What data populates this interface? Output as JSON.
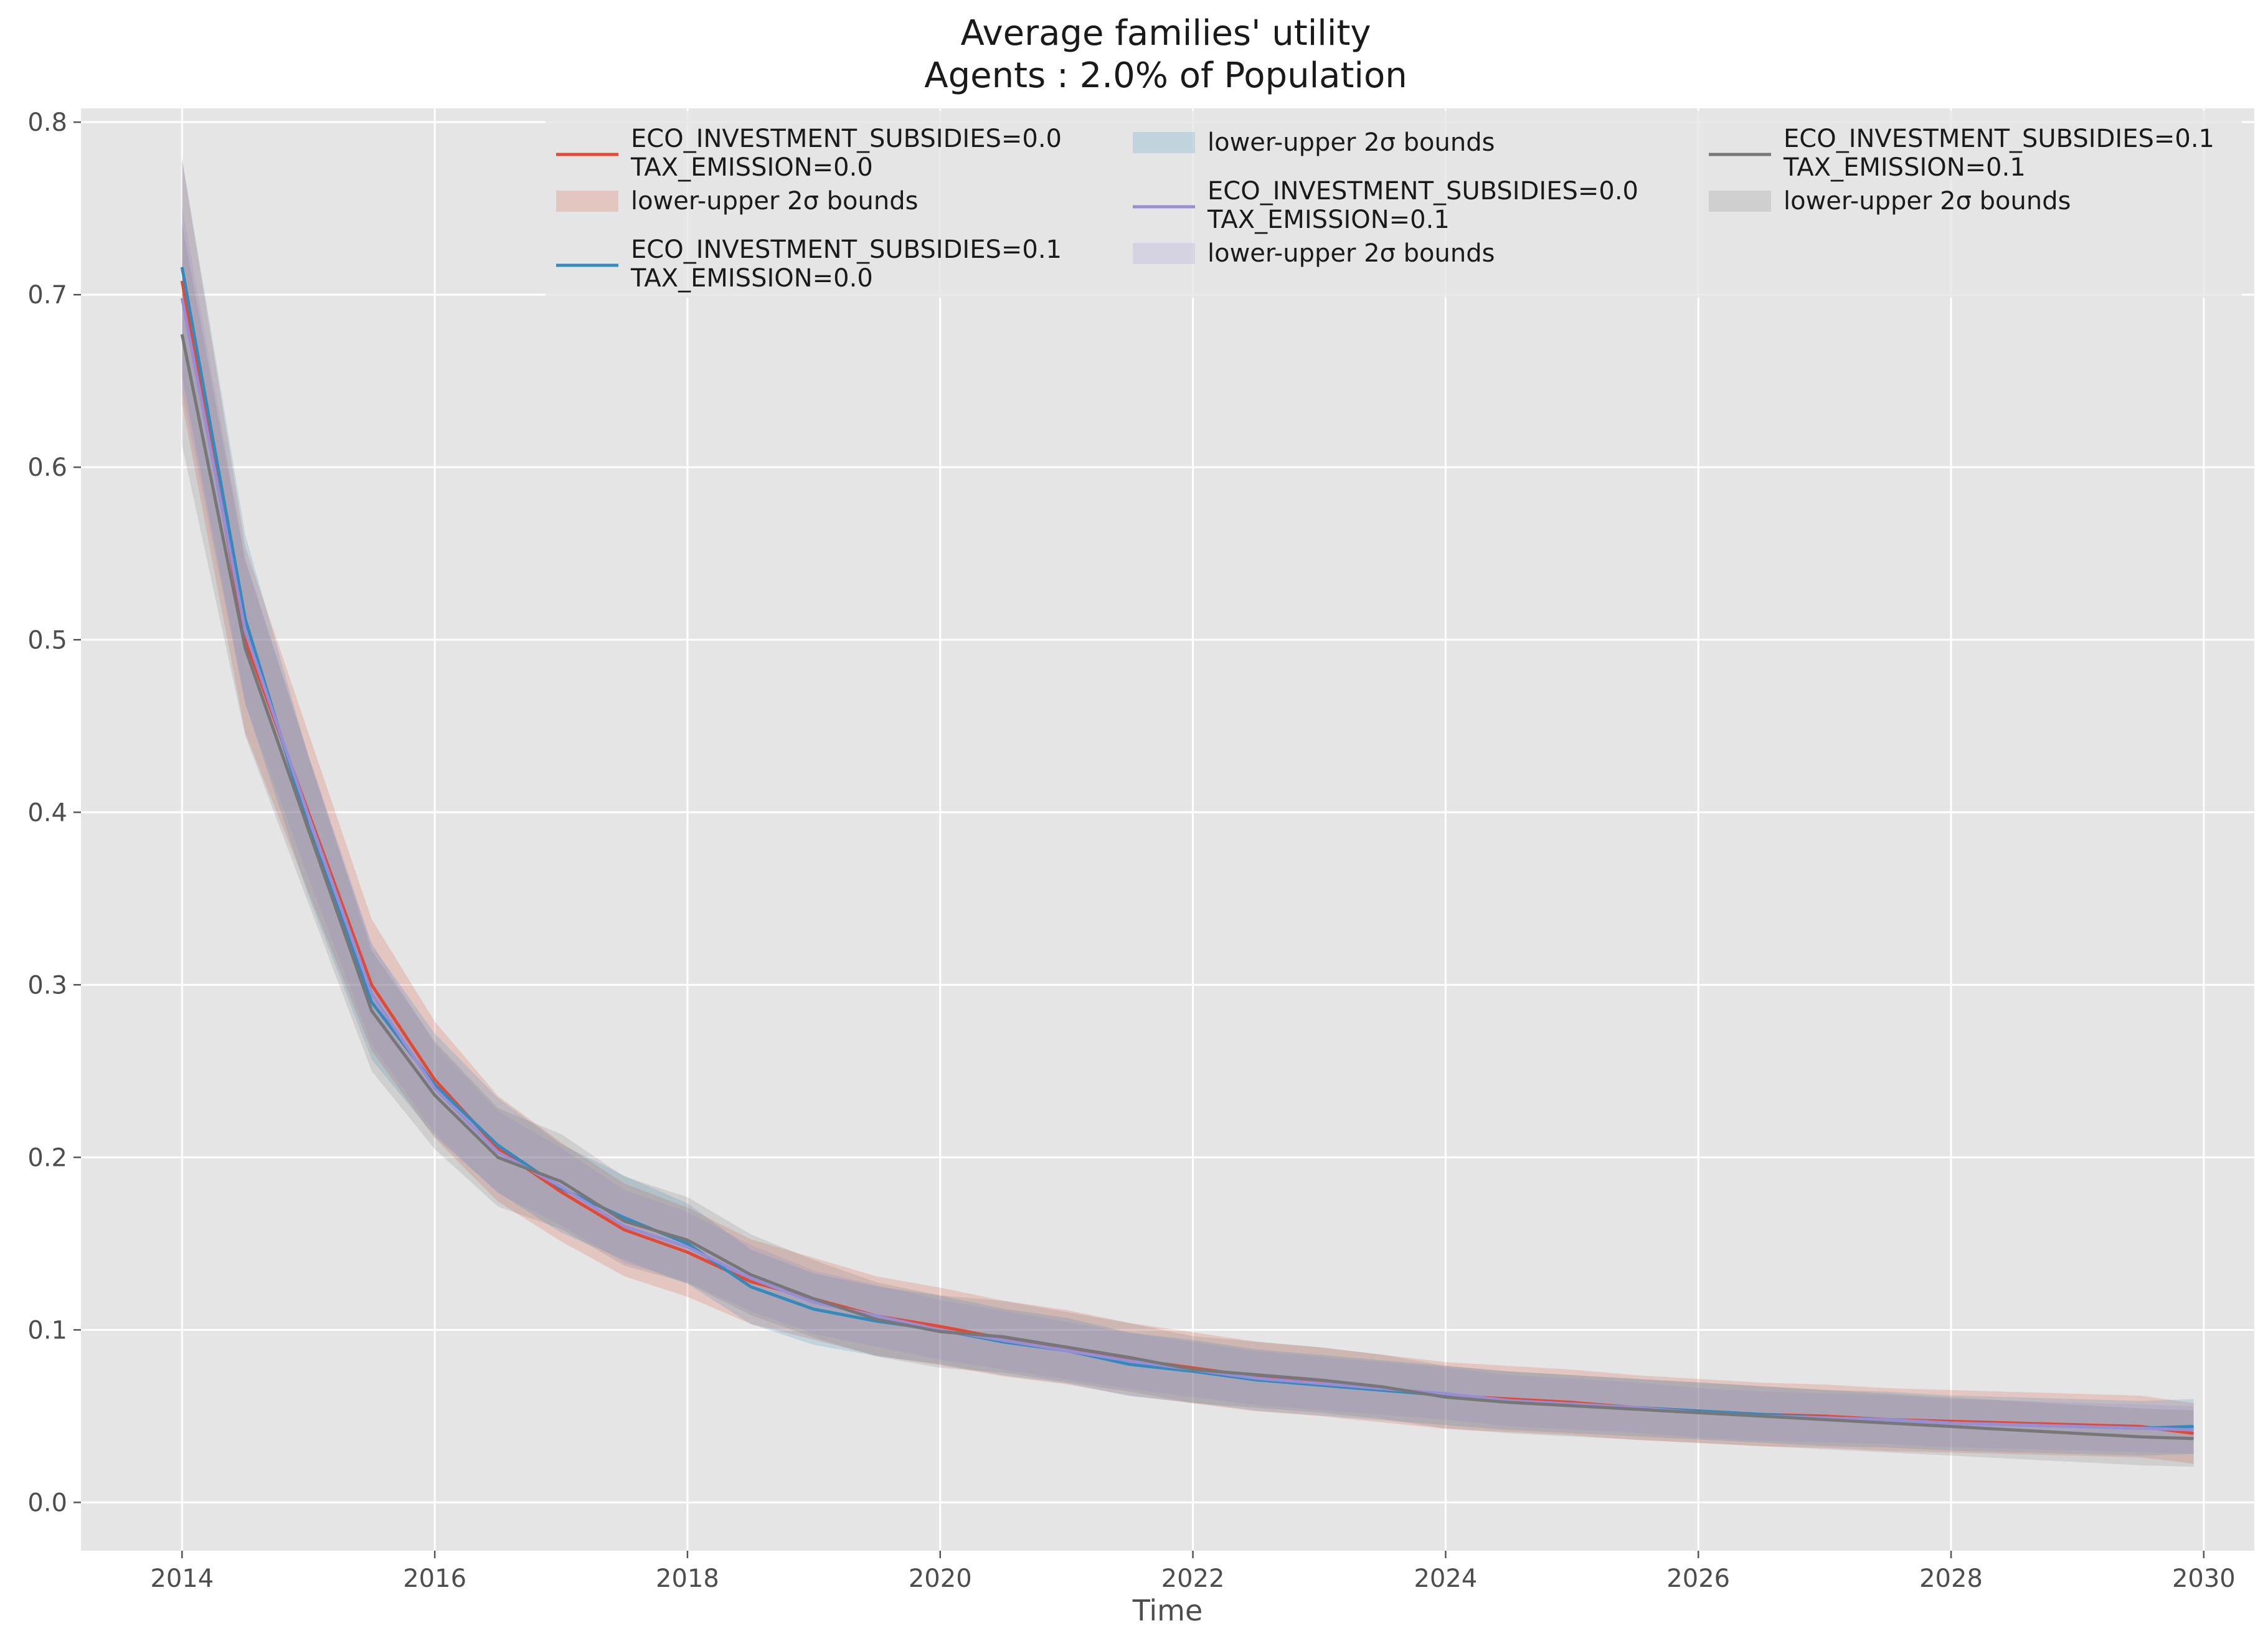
{
  "chart_data": {
    "type": "line",
    "title_line1": "Average families' utility",
    "title_line2": "Agents : 2.0% of Population",
    "xlabel": "Time",
    "ylabel": "",
    "xlim": [
      2013.2,
      2030.4
    ],
    "ylim": [
      -0.028,
      0.808
    ],
    "x_ticks": [
      2014,
      2016,
      2018,
      2020,
      2022,
      2024,
      2026,
      2028,
      2030
    ],
    "y_ticks": [
      0.0,
      0.1,
      0.2,
      0.3,
      0.4,
      0.5,
      0.6,
      0.7,
      0.8
    ],
    "x_tick_labels": [
      "2014",
      "2016",
      "2018",
      "2020",
      "2022",
      "2024",
      "2026",
      "2028",
      "2030"
    ],
    "y_tick_labels": [
      "0.0",
      "0.1",
      "0.2",
      "0.3",
      "0.4",
      "0.5",
      "0.6",
      "0.7",
      "0.8"
    ],
    "grid": true,
    "legend_position": "top-right",
    "band_label": "lower-upper 2σ bounds",
    "x": [
      2014.0,
      2014.5,
      2015.0,
      2015.5,
      2016.0,
      2016.5,
      2017.0,
      2017.5,
      2018.0,
      2018.5,
      2019.0,
      2019.5,
      2020.0,
      2020.5,
      2021.0,
      2021.5,
      2022.0,
      2022.5,
      2023.0,
      2023.5,
      2024.0,
      2024.5,
      2025.0,
      2025.5,
      2026.0,
      2026.5,
      2027.0,
      2027.5,
      2028.0,
      2028.5,
      2029.0,
      2029.5,
      2029.92
    ],
    "series": [
      {
        "name_line1": "ECO_INVESTMENT_SUBSIDIES=0.0",
        "name_line2": "TAX_EMISSION=0.0",
        "color": "#E24A33",
        "values": [
          0.708,
          0.5,
          0.4,
          0.3,
          0.245,
          0.205,
          0.18,
          0.158,
          0.145,
          0.128,
          0.118,
          0.108,
          0.102,
          0.095,
          0.09,
          0.083,
          0.078,
          0.073,
          0.07,
          0.066,
          0.062,
          0.06,
          0.058,
          0.055,
          0.053,
          0.051,
          0.05,
          0.048,
          0.047,
          0.046,
          0.045,
          0.044,
          0.04
        ],
        "band": 0.036
      },
      {
        "name_line1": "ECO_INVESTMENT_SUBSIDIES=0.1",
        "name_line2": "TAX_EMISSION=0.0",
        "color": "#348ABD",
        "values": [
          0.716,
          0.512,
          0.392,
          0.29,
          0.242,
          0.207,
          0.182,
          0.165,
          0.15,
          0.125,
          0.112,
          0.105,
          0.1,
          0.093,
          0.088,
          0.08,
          0.076,
          0.071,
          0.068,
          0.065,
          0.062,
          0.059,
          0.057,
          0.055,
          0.053,
          0.051,
          0.049,
          0.048,
          0.046,
          0.045,
          0.044,
          0.043,
          0.044
        ],
        "band": 0.032
      },
      {
        "name_line1": "ECO_INVESTMENT_SUBSIDIES=0.0",
        "name_line2": "TAX_EMISSION=0.1",
        "color": "#988ED5",
        "values": [
          0.698,
          0.505,
          0.398,
          0.295,
          0.24,
          0.203,
          0.183,
          0.16,
          0.148,
          0.13,
          0.116,
          0.108,
          0.1,
          0.094,
          0.088,
          0.082,
          0.077,
          0.072,
          0.069,
          0.066,
          0.063,
          0.059,
          0.057,
          0.055,
          0.052,
          0.05,
          0.049,
          0.048,
          0.046,
          0.045,
          0.044,
          0.043,
          0.042
        ],
        "band": 0.028
      },
      {
        "name_line1": "ECO_INVESTMENT_SUBSIDIES=0.1",
        "name_line2": "TAX_EMISSION=0.1",
        "color": "#777777",
        "values": [
          0.677,
          0.495,
          0.39,
          0.285,
          0.236,
          0.2,
          0.186,
          0.163,
          0.152,
          0.132,
          0.118,
          0.106,
          0.099,
          0.096,
          0.09,
          0.084,
          0.077,
          0.074,
          0.071,
          0.067,
          0.061,
          0.058,
          0.056,
          0.054,
          0.052,
          0.05,
          0.048,
          0.046,
          0.044,
          0.042,
          0.04,
          0.038,
          0.037
        ],
        "band": 0.034
      }
    ]
  }
}
